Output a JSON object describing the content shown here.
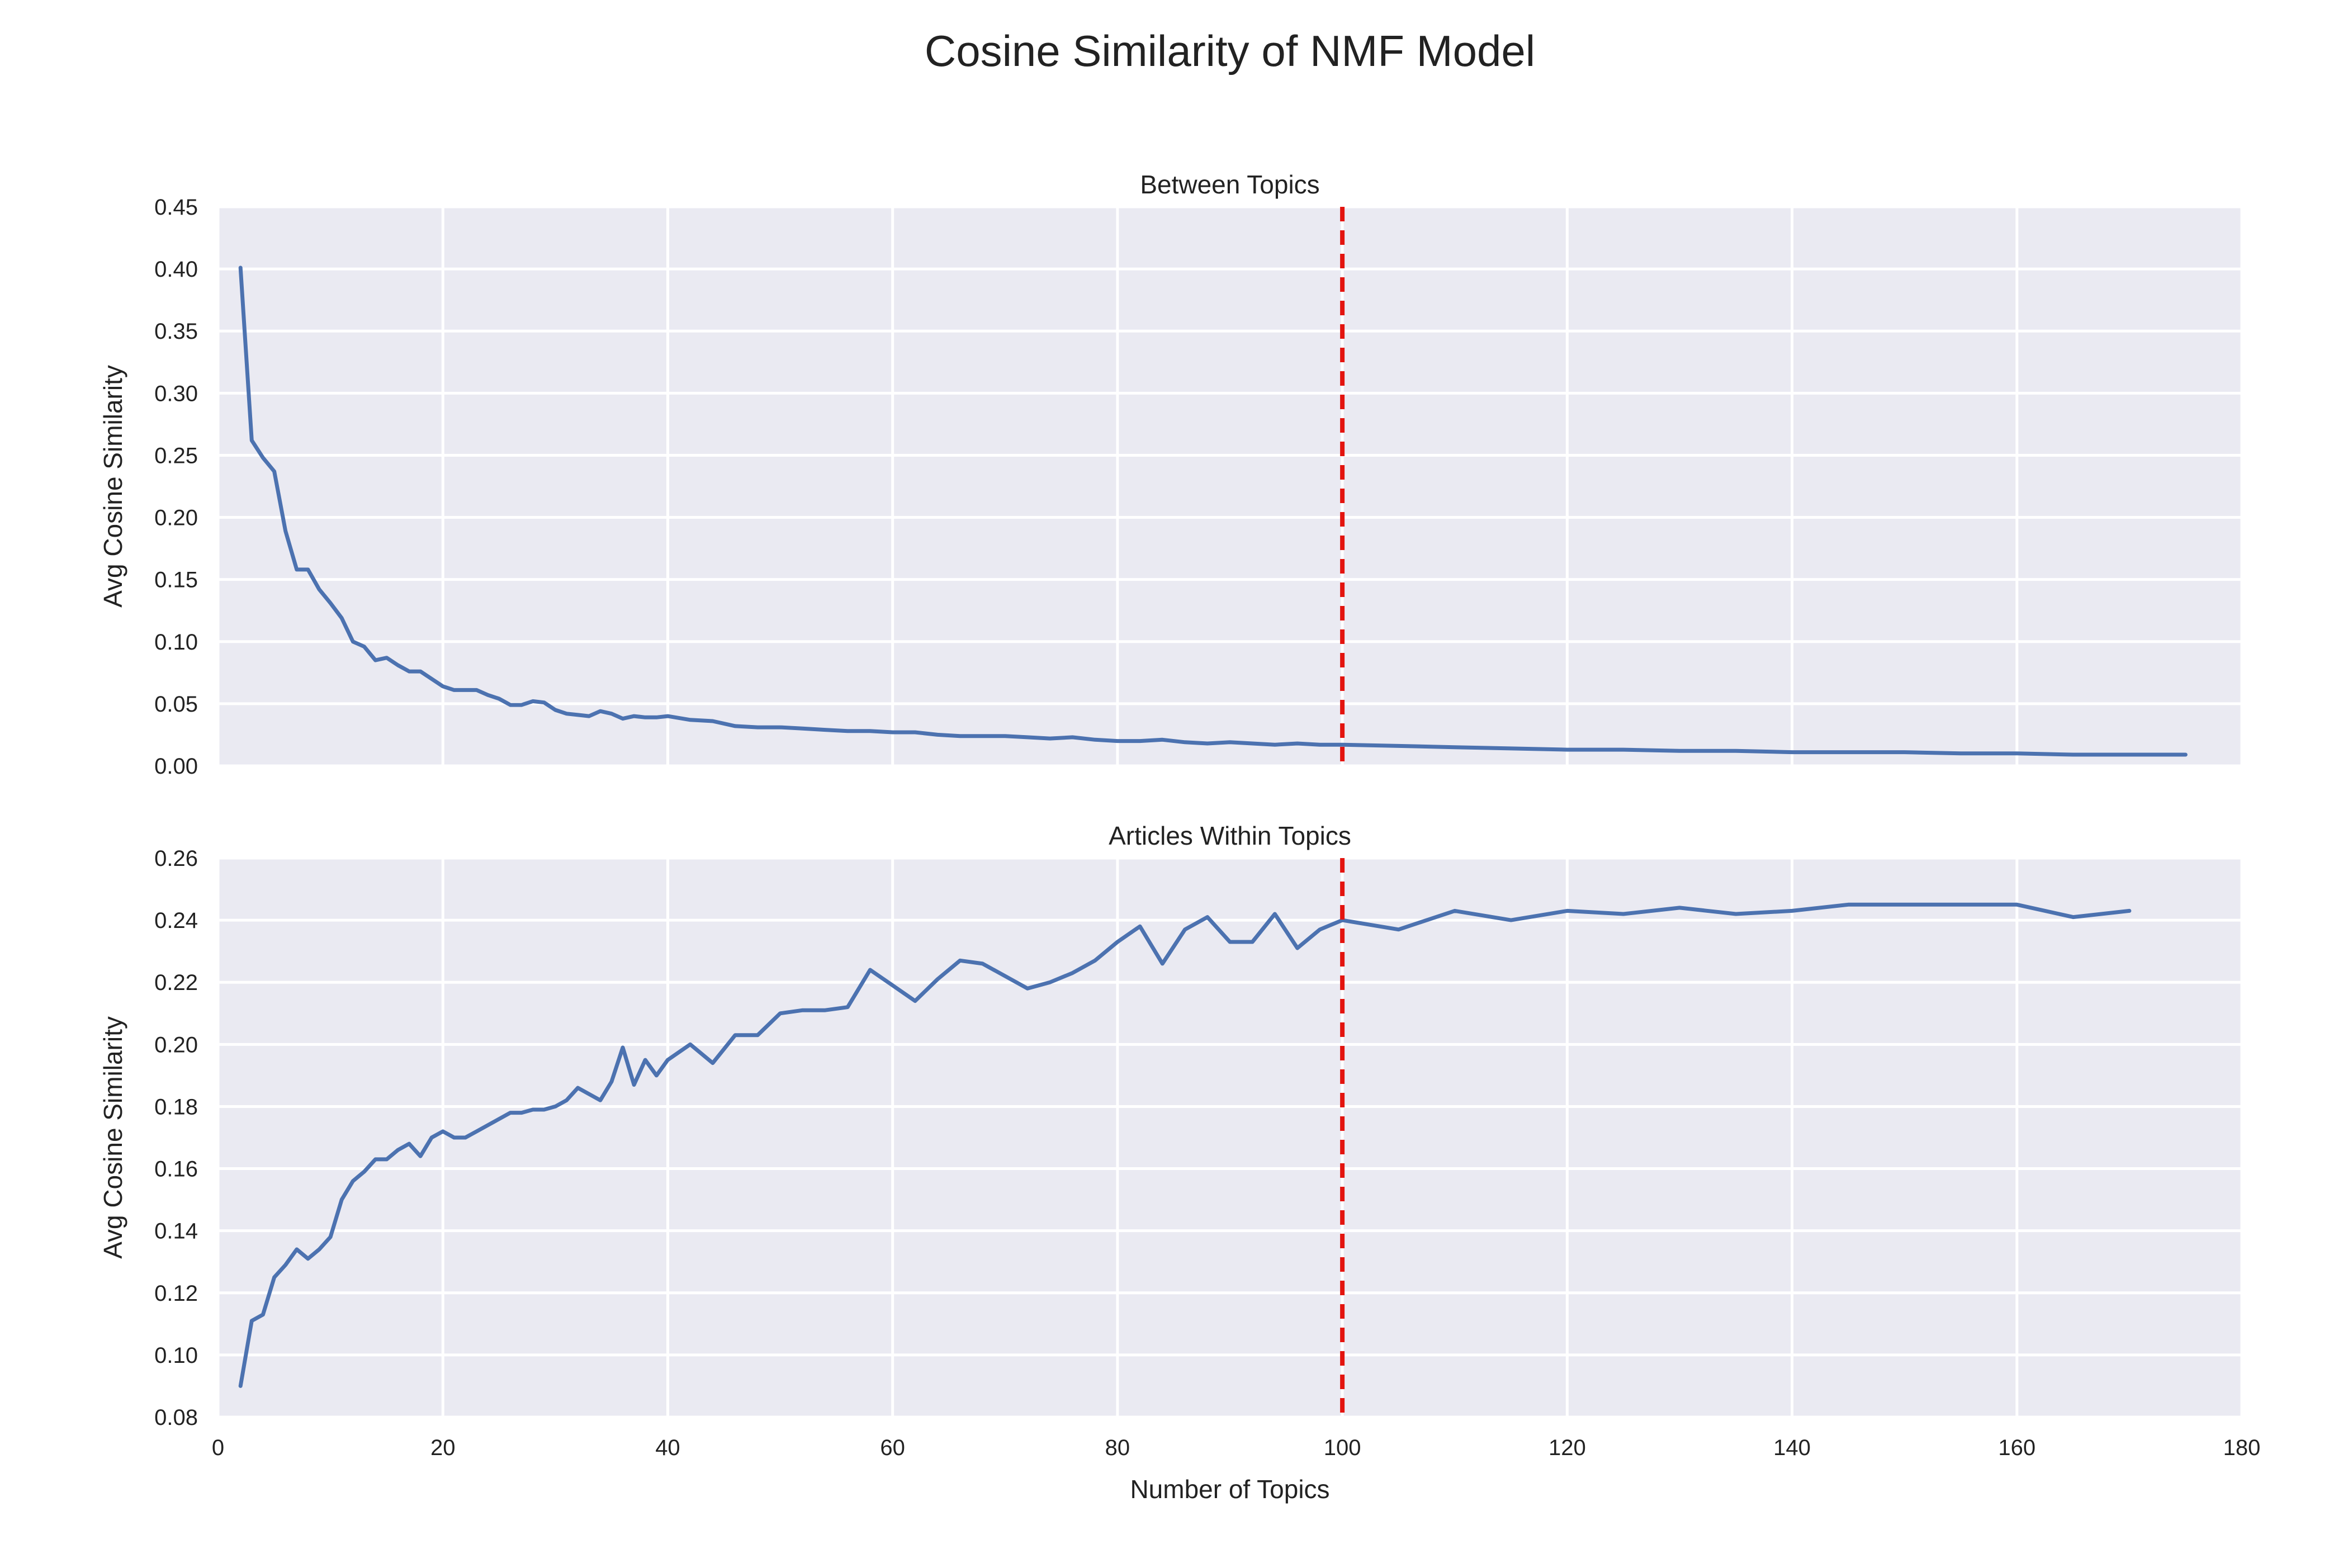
{
  "title": "Cosine Similarity of NMF Model",
  "colors": {
    "plot_background": "#eaeaf2",
    "grid": "#ffffff",
    "series": "#4c72b0",
    "reference_line": "#e3140f"
  },
  "chart_data": [
    {
      "type": "line",
      "title": "Between Topics",
      "xlabel": "",
      "ylabel": "Avg Cosine Similarity",
      "xlim": [
        0,
        180
      ],
      "ylim": [
        0.0,
        0.45
      ],
      "xticks": [
        0,
        20,
        40,
        60,
        80,
        100,
        120,
        140,
        160,
        180
      ],
      "yticks": [
        0.0,
        0.05,
        0.1,
        0.15,
        0.2,
        0.25,
        0.3,
        0.35,
        0.4,
        0.45
      ],
      "ytick_labels": [
        "0.00",
        "0.05",
        "0.10",
        "0.15",
        "0.20",
        "0.25",
        "0.30",
        "0.35",
        "0.40",
        "0.45"
      ],
      "show_xtick_labels": false,
      "grid": true,
      "vline": {
        "x": 100,
        "style": "dashed"
      },
      "x": [
        2,
        3,
        4,
        5,
        6,
        7,
        8,
        9,
        10,
        11,
        12,
        13,
        14,
        15,
        16,
        17,
        18,
        19,
        20,
        21,
        22,
        23,
        24,
        25,
        26,
        27,
        28,
        29,
        30,
        31,
        32,
        33,
        34,
        35,
        36,
        37,
        38,
        39,
        40,
        42,
        44,
        46,
        48,
        50,
        52,
        54,
        56,
        58,
        60,
        62,
        64,
        66,
        68,
        70,
        72,
        74,
        76,
        78,
        80,
        82,
        84,
        86,
        88,
        90,
        92,
        94,
        96,
        98,
        100,
        105,
        110,
        115,
        120,
        125,
        130,
        135,
        140,
        145,
        150,
        155,
        160,
        165,
        170,
        175
      ],
      "y": [
        0.401,
        0.262,
        0.248,
        0.237,
        0.189,
        0.158,
        0.158,
        0.142,
        0.131,
        0.119,
        0.1,
        0.096,
        0.085,
        0.087,
        0.081,
        0.076,
        0.076,
        0.07,
        0.064,
        0.061,
        0.061,
        0.061,
        0.057,
        0.054,
        0.049,
        0.049,
        0.052,
        0.051,
        0.045,
        0.042,
        0.041,
        0.04,
        0.044,
        0.042,
        0.038,
        0.04,
        0.039,
        0.039,
        0.04,
        0.037,
        0.036,
        0.032,
        0.031,
        0.031,
        0.03,
        0.029,
        0.028,
        0.028,
        0.027,
        0.027,
        0.025,
        0.024,
        0.024,
        0.024,
        0.023,
        0.022,
        0.023,
        0.021,
        0.02,
        0.02,
        0.021,
        0.019,
        0.018,
        0.019,
        0.018,
        0.017,
        0.018,
        0.017,
        0.017,
        0.016,
        0.015,
        0.014,
        0.013,
        0.013,
        0.012,
        0.012,
        0.011,
        0.011,
        0.011,
        0.01,
        0.01,
        0.009,
        0.009,
        0.009
      ]
    },
    {
      "type": "line",
      "title": "Articles Within Topics",
      "xlabel": "Number of Topics",
      "ylabel": "Avg Cosine Similarity",
      "xlim": [
        0,
        180
      ],
      "ylim": [
        0.08,
        0.26
      ],
      "xticks": [
        0,
        20,
        40,
        60,
        80,
        100,
        120,
        140,
        160,
        180
      ],
      "yticks": [
        0.08,
        0.1,
        0.12,
        0.14,
        0.16,
        0.18,
        0.2,
        0.22,
        0.24,
        0.26
      ],
      "ytick_labels": [
        "0.08",
        "0.10",
        "0.12",
        "0.14",
        "0.16",
        "0.18",
        "0.20",
        "0.22",
        "0.24",
        "0.26"
      ],
      "show_xtick_labels": true,
      "grid": true,
      "vline": {
        "x": 100,
        "style": "dashed"
      },
      "x": [
        2,
        3,
        4,
        5,
        6,
        7,
        8,
        9,
        10,
        11,
        12,
        13,
        14,
        15,
        16,
        17,
        18,
        19,
        20,
        21,
        22,
        23,
        24,
        25,
        26,
        27,
        28,
        29,
        30,
        31,
        32,
        33,
        34,
        35,
        36,
        37,
        38,
        39,
        40,
        42,
        44,
        46,
        48,
        50,
        52,
        54,
        56,
        58,
        60,
        62,
        64,
        66,
        68,
        70,
        72,
        74,
        76,
        78,
        80,
        82,
        84,
        86,
        88,
        90,
        92,
        94,
        96,
        98,
        100,
        105,
        110,
        115,
        120,
        125,
        130,
        135,
        140,
        145,
        150,
        155,
        160,
        165,
        170
      ],
      "y": [
        0.09,
        0.111,
        0.113,
        0.125,
        0.129,
        0.134,
        0.131,
        0.134,
        0.138,
        0.15,
        0.156,
        0.159,
        0.163,
        0.163,
        0.166,
        0.168,
        0.164,
        0.17,
        0.172,
        0.17,
        0.17,
        0.172,
        0.174,
        0.176,
        0.178,
        0.178,
        0.179,
        0.179,
        0.18,
        0.182,
        0.186,
        0.184,
        0.182,
        0.188,
        0.199,
        0.187,
        0.195,
        0.19,
        0.195,
        0.2,
        0.194,
        0.203,
        0.203,
        0.21,
        0.211,
        0.211,
        0.212,
        0.224,
        0.219,
        0.214,
        0.221,
        0.227,
        0.226,
        0.222,
        0.218,
        0.22,
        0.223,
        0.227,
        0.233,
        0.238,
        0.226,
        0.237,
        0.241,
        0.233,
        0.233,
        0.242,
        0.231,
        0.237,
        0.24,
        0.237,
        0.243,
        0.24,
        0.243,
        0.242,
        0.244,
        0.242,
        0.243,
        0.245,
        0.245,
        0.245,
        0.245,
        0.241,
        0.243
      ]
    }
  ]
}
